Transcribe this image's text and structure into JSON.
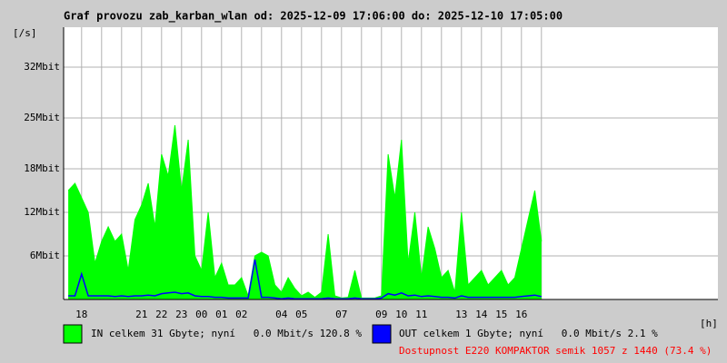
{
  "chart_data": {
    "type": "area",
    "title": "Graf provozu zab_karban_wlan od: 2025-12-09 17:06:00 do: 2025-12-10 17:05:00",
    "y_label": "[/s]",
    "x_label": "[h]",
    "ylim": [
      0,
      37.5
    ],
    "yticks": [
      {
        "value": 6,
        "label": "6Mbit"
      },
      {
        "value": 12,
        "label": "12Mbit"
      },
      {
        "value": 18,
        "label": "18Mbit"
      },
      {
        "value": 25,
        "label": "25Mbit"
      },
      {
        "value": 32,
        "label": "32Mbit"
      }
    ],
    "grid": true,
    "categories": [
      null,
      null,
      "18",
      null,
      null,
      null,
      null,
      null,
      null,
      null,
      null,
      "21",
      null,
      null,
      "22",
      null,
      null,
      "23",
      null,
      null,
      "00",
      null,
      null,
      "01",
      null,
      null,
      "02",
      null,
      null,
      null,
      null,
      null,
      "04",
      null,
      null,
      "05",
      null,
      null,
      null,
      null,
      null,
      "07",
      null,
      null,
      null,
      null,
      null,
      "09",
      null,
      null,
      "10",
      null,
      null,
      "11",
      null,
      null,
      null,
      null,
      null,
      "13",
      null,
      null,
      "14",
      null,
      null,
      "15",
      null,
      null,
      "16",
      null,
      null,
      null
    ],
    "series": [
      {
        "name": "IN celkem 31 Gbyte; nyní   0.0 Mbit/s 120.8 %",
        "color": "#00ff00",
        "style": "area",
        "values": [
          15,
          16,
          14,
          12,
          5,
          8,
          10,
          8,
          9,
          4,
          11,
          13,
          16,
          10,
          20,
          17,
          24,
          15,
          22,
          6,
          4,
          12,
          3,
          5,
          2,
          2,
          3,
          0.5,
          6,
          6.5,
          6,
          2,
          1,
          3,
          1.5,
          0.5,
          1,
          0.3,
          1,
          9,
          0.5,
          0.2,
          0.3,
          4,
          0.2,
          0.2,
          0.2,
          0.5,
          20,
          14,
          22,
          5,
          12,
          3,
          10,
          7,
          3,
          4,
          1,
          12,
          2,
          3,
          4,
          2,
          3,
          4,
          2,
          3,
          7,
          11,
          15,
          8
        ]
      },
      {
        "name": "OUT celkem 1 Gbyte; nyní   0.0 Mbit/s 2.1 %",
        "color": "#0000ff",
        "style": "line",
        "values": [
          0.5,
          0.5,
          3.5,
          0.5,
          0.5,
          0.5,
          0.5,
          0.4,
          0.5,
          0.4,
          0.5,
          0.5,
          0.6,
          0.5,
          0.8,
          0.9,
          1,
          0.8,
          0.9,
          0.5,
          0.4,
          0.4,
          0.3,
          0.3,
          0.2,
          0.2,
          0.2,
          0.2,
          5.5,
          0.3,
          0.3,
          0.2,
          0.1,
          0.2,
          0.1,
          0.1,
          0.1,
          0.1,
          0.1,
          0.2,
          0.1,
          0.1,
          0.1,
          0.2,
          0.1,
          0.1,
          0.1,
          0.2,
          0.8,
          0.6,
          0.9,
          0.5,
          0.6,
          0.4,
          0.5,
          0.4,
          0.3,
          0.3,
          0.2,
          0.5,
          0.3,
          0.3,
          0.3,
          0.3,
          0.3,
          0.3,
          0.3,
          0.3,
          0.4,
          0.5,
          0.6,
          0.4
        ]
      }
    ],
    "availability": "Dostupnost E220 KOMPAKTOR semik 1057 z 1440 (73.4 %)",
    "availability_color": "#ff0000"
  }
}
